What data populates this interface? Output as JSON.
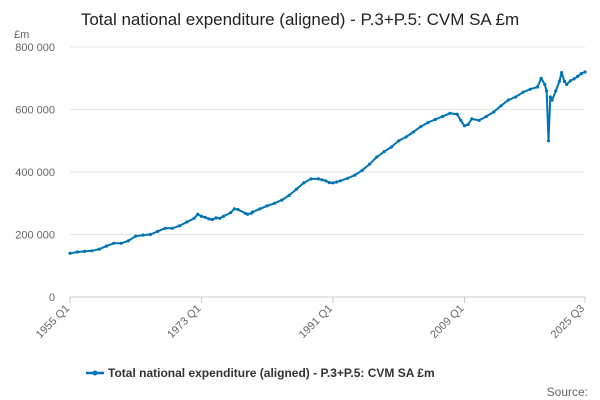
{
  "chart_data": {
    "type": "line",
    "title": "Total national expenditure (aligned) - P.3+P.5: CVM SA £m",
    "unit_label": "£m",
    "ylabel": "£m",
    "xlabel": "",
    "ylim": [
      0,
      800000
    ],
    "yticks": [
      0,
      200000,
      400000,
      600000,
      800000
    ],
    "ytick_labels": [
      "0",
      "200 000",
      "400 000",
      "600 000",
      "800 000"
    ],
    "xlim": [
      1955.0,
      2025.5
    ],
    "xticks": [
      {
        "x": 1955.0,
        "label": "1955 Q1"
      },
      {
        "x": 1973.0,
        "label": "1973 Q1"
      },
      {
        "x": 1991.0,
        "label": "1991 Q1"
      },
      {
        "x": 2009.0,
        "label": "2009 Q1"
      },
      {
        "x": 2025.5,
        "label": "2025 Q3"
      }
    ],
    "grid": true,
    "legend_position": "bottom",
    "source_label": "Source:",
    "colors": {
      "series": "#0075b6",
      "grid": "#e6e6e6"
    },
    "series": [
      {
        "name": "Total national expenditure (aligned) - P.3+P.5: CVM SA £m",
        "x": [
          1955.0,
          1956,
          1957,
          1958,
          1959,
          1960,
          1961,
          1962,
          1963,
          1964,
          1965,
          1966,
          1967,
          1968,
          1969,
          1970,
          1971,
          1972,
          1972.5,
          1973,
          1973.5,
          1974,
          1974.5,
          1975,
          1975.5,
          1976,
          1977,
          1977.5,
          1978,
          1979,
          1979.3,
          1979.8,
          1980,
          1981,
          1982,
          1983,
          1984,
          1985,
          1986,
          1987,
          1988,
          1989,
          1989.5,
          1990,
          1990.5,
          1991,
          1991.5,
          1992,
          1993,
          1994,
          1995,
          1996,
          1997,
          1998,
          1999,
          2000,
          2001,
          2002,
          2003,
          2004,
          2005,
          2006,
          2007,
          2008,
          2008.5,
          2009,
          2009.5,
          2010,
          2011,
          2012,
          2013,
          2014,
          2015,
          2016,
          2017,
          2018,
          2019,
          2019.5,
          2020.0,
          2020.25,
          2020.5,
          2020.75,
          2021,
          2021.5,
          2022,
          2022.3,
          2022.7,
          2023,
          2023.5,
          2024,
          2024.5,
          2025,
          2025.5
        ],
        "y": [
          140000,
          144000,
          146000,
          148000,
          153000,
          163000,
          172000,
          172000,
          180000,
          195000,
          198000,
          200000,
          210000,
          220000,
          220000,
          228000,
          240000,
          252000,
          265000,
          258000,
          255000,
          250000,
          248000,
          253000,
          252000,
          258000,
          270000,
          282000,
          280000,
          268000,
          265000,
          268000,
          272000,
          282000,
          292000,
          300000,
          310000,
          325000,
          345000,
          365000,
          378000,
          378000,
          375000,
          372000,
          366000,
          365000,
          368000,
          372000,
          380000,
          390000,
          405000,
          425000,
          448000,
          465000,
          480000,
          500000,
          512000,
          528000,
          545000,
          558000,
          568000,
          578000,
          588000,
          585000,
          565000,
          548000,
          552000,
          570000,
          565000,
          578000,
          592000,
          612000,
          630000,
          640000,
          655000,
          665000,
          672000,
          700000,
          680000,
          660000,
          500000,
          640000,
          630000,
          660000,
          690000,
          718000,
          690000,
          680000,
          692000,
          698000,
          706000,
          715000,
          720000
        ]
      }
    ]
  }
}
